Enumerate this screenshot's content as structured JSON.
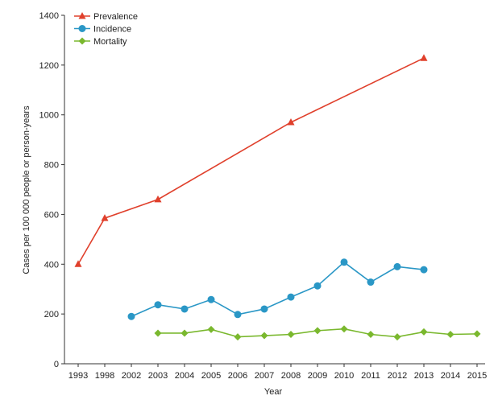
{
  "chart_data": {
    "type": "line",
    "title": "",
    "xlabel": "Year",
    "ylabel": "Cases per 100 000 people or person-years",
    "ylim": [
      0,
      1400
    ],
    "yticks": [
      0,
      200,
      400,
      600,
      800,
      1000,
      1200,
      1400
    ],
    "categories": [
      "1993",
      "1998",
      "2002",
      "2003",
      "2004",
      "2005",
      "2006",
      "2007",
      "2008",
      "2009",
      "2010",
      "2011",
      "2012",
      "2013",
      "2014",
      "2015"
    ],
    "legend_position": "top-left",
    "grid": false,
    "series": [
      {
        "name": "Prevalence",
        "color": "#e0402c",
        "marker": "triangle",
        "points": [
          {
            "x": "1993",
            "y": 400
          },
          {
            "x": "1998",
            "y": 585
          },
          {
            "x": "2003",
            "y": 660
          },
          {
            "x": "2008",
            "y": 970
          },
          {
            "x": "2013",
            "y": 1228
          }
        ]
      },
      {
        "name": "Incidence",
        "color": "#2a97c6",
        "marker": "circle",
        "points": [
          {
            "x": "2002",
            "y": 190
          },
          {
            "x": "2003",
            "y": 237
          },
          {
            "x": "2004",
            "y": 220
          },
          {
            "x": "2005",
            "y": 258
          },
          {
            "x": "2006",
            "y": 198
          },
          {
            "x": "2007",
            "y": 220
          },
          {
            "x": "2008",
            "y": 268
          },
          {
            "x": "2009",
            "y": 313
          },
          {
            "x": "2010",
            "y": 408
          },
          {
            "x": "2011",
            "y": 328
          },
          {
            "x": "2012",
            "y": 390
          },
          {
            "x": "2013",
            "y": 378
          }
        ]
      },
      {
        "name": "Mortality",
        "color": "#7ab82e",
        "marker": "diamond",
        "points": [
          {
            "x": "2003",
            "y": 123
          },
          {
            "x": "2004",
            "y": 123
          },
          {
            "x": "2005",
            "y": 138
          },
          {
            "x": "2006",
            "y": 108
          },
          {
            "x": "2007",
            "y": 113
          },
          {
            "x": "2008",
            "y": 118
          },
          {
            "x": "2009",
            "y": 133
          },
          {
            "x": "2010",
            "y": 140
          },
          {
            "x": "2011",
            "y": 118
          },
          {
            "x": "2012",
            "y": 108
          },
          {
            "x": "2013",
            "y": 128
          },
          {
            "x": "2014",
            "y": 118
          },
          {
            "x": "2015",
            "y": 120
          }
        ]
      }
    ]
  }
}
